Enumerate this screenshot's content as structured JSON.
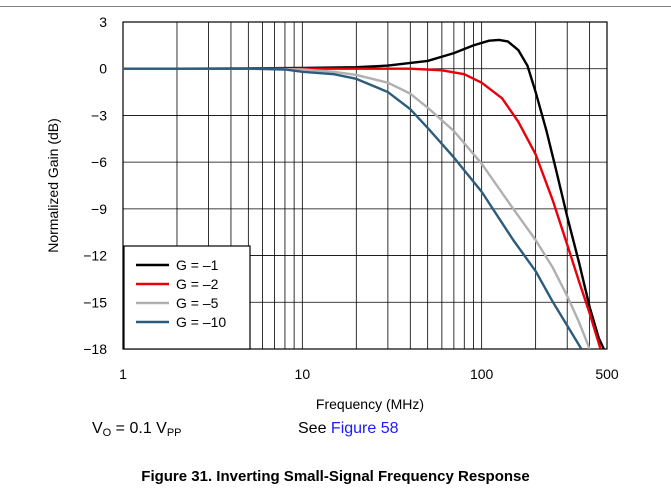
{
  "chart_data": {
    "type": "line",
    "xscale": "log",
    "xlim": [
      1,
      500
    ],
    "ylim": [
      -18,
      3
    ],
    "xlabel": "Frequency (MHz)",
    "ylabel": "Normalized Gain (dB)",
    "x_ticks": [
      1,
      10,
      100,
      500
    ],
    "x_tick_labels": [
      "1",
      "10",
      "100",
      "500"
    ],
    "y_ticks": [
      3,
      0,
      -3,
      -6,
      -9,
      -12,
      -15,
      -18
    ],
    "y_tick_labels": [
      "3",
      "0",
      "−3",
      "−6",
      "−9",
      "−12",
      "−15",
      "−18"
    ],
    "grid": true,
    "legend_position": "bottom-left",
    "series": [
      {
        "name": "G = –1",
        "color": "#000000",
        "points": [
          [
            1,
            0
          ],
          [
            2,
            0
          ],
          [
            5,
            0.02
          ],
          [
            10,
            0.05
          ],
          [
            20,
            0.1
          ],
          [
            30,
            0.2
          ],
          [
            50,
            0.5
          ],
          [
            70,
            1.0
          ],
          [
            90,
            1.5
          ],
          [
            110,
            1.8
          ],
          [
            125,
            1.85
          ],
          [
            140,
            1.75
          ],
          [
            160,
            1.2
          ],
          [
            180,
            0.2
          ],
          [
            200,
            -1.5
          ],
          [
            230,
            -4
          ],
          [
            260,
            -6.5
          ],
          [
            300,
            -9.5
          ],
          [
            350,
            -12.5
          ],
          [
            400,
            -15.3
          ],
          [
            450,
            -17.3
          ],
          [
            480,
            -18
          ]
        ]
      },
      {
        "name": "G = –2",
        "color": "#e8000b",
        "points": [
          [
            1,
            0
          ],
          [
            5,
            0
          ],
          [
            10,
            0
          ],
          [
            20,
            0
          ],
          [
            40,
            0
          ],
          [
            60,
            -0.1
          ],
          [
            80,
            -0.35
          ],
          [
            100,
            -0.9
          ],
          [
            130,
            -1.9
          ],
          [
            160,
            -3.4
          ],
          [
            200,
            -5.5
          ],
          [
            250,
            -8.5
          ],
          [
            300,
            -11.3
          ],
          [
            350,
            -13.7
          ],
          [
            400,
            -15.7
          ],
          [
            460,
            -18
          ]
        ]
      },
      {
        "name": "G = –5",
        "color": "#b0b0b0",
        "points": [
          [
            1,
            0
          ],
          [
            5,
            0
          ],
          [
            8,
            -0.02
          ],
          [
            10,
            -0.05
          ],
          [
            15,
            -0.2
          ],
          [
            20,
            -0.4
          ],
          [
            30,
            -0.9
          ],
          [
            40,
            -1.6
          ],
          [
            50,
            -2.5
          ],
          [
            70,
            -4
          ],
          [
            100,
            -6.1
          ],
          [
            150,
            -9
          ],
          [
            200,
            -11
          ],
          [
            250,
            -12.8
          ],
          [
            300,
            -14.6
          ],
          [
            350,
            -16.3
          ],
          [
            400,
            -18
          ]
        ]
      },
      {
        "name": "G = –10",
        "color": "#2b5c7e",
        "points": [
          [
            1,
            0
          ],
          [
            5,
            0
          ],
          [
            8,
            -0.05
          ],
          [
            10,
            -0.2
          ],
          [
            15,
            -0.35
          ],
          [
            20,
            -0.65
          ],
          [
            30,
            -1.5
          ],
          [
            40,
            -2.6
          ],
          [
            50,
            -3.8
          ],
          [
            70,
            -5.7
          ],
          [
            100,
            -7.9
          ],
          [
            150,
            -11
          ],
          [
            200,
            -13
          ],
          [
            250,
            -15
          ],
          [
            300,
            -16.5
          ],
          [
            360,
            -18
          ]
        ]
      }
    ]
  },
  "conditions": {
    "vo_prefix": "V",
    "vo_sub": "O",
    "vo_mid": " = 0.1 V",
    "vo_sub2": "PP",
    "see_text": "See ",
    "see_link": "Figure 58"
  },
  "caption": "Figure 31. Inverting Small-Signal Frequency Response"
}
